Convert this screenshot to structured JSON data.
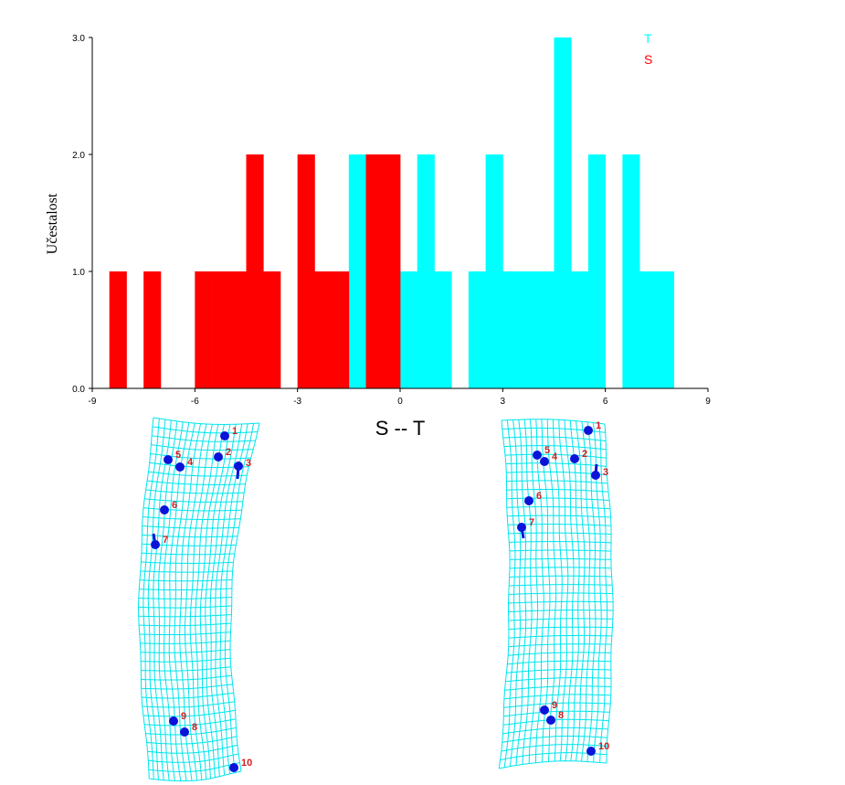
{
  "chart_data": {
    "type": "bar",
    "title": "",
    "xlabel": "S -- T",
    "ylabel": "Učestalost",
    "xlim": [
      -9,
      9
    ],
    "ylim": [
      0,
      3
    ],
    "x_ticks": [
      "-9",
      "-6",
      "-3",
      "0",
      "3",
      "6",
      "9"
    ],
    "y_ticks": [
      "0.0",
      "1.0",
      "2.0",
      "3.0"
    ],
    "bin_width": 0.5,
    "grid": false,
    "legend_position": "top-right",
    "series": [
      {
        "name": "T",
        "color": "#00ffff",
        "bins": [
          {
            "start": -1.5,
            "count": 2
          },
          {
            "start": 0.0,
            "count": 1
          },
          {
            "start": 0.5,
            "count": 2
          },
          {
            "start": 1.0,
            "count": 1
          },
          {
            "start": 2.0,
            "count": 1
          },
          {
            "start": 2.5,
            "count": 2
          },
          {
            "start": 3.0,
            "count": 1
          },
          {
            "start": 3.5,
            "count": 1
          },
          {
            "start": 4.0,
            "count": 1
          },
          {
            "start": 4.5,
            "count": 3
          },
          {
            "start": 5.0,
            "count": 1
          },
          {
            "start": 5.5,
            "count": 2
          },
          {
            "start": 6.5,
            "count": 2
          },
          {
            "start": 7.0,
            "count": 1
          },
          {
            "start": 7.5,
            "count": 1
          }
        ]
      },
      {
        "name": "S",
        "color": "#ff0000",
        "bins": [
          {
            "start": -8.5,
            "count": 1
          },
          {
            "start": -7.5,
            "count": 1
          },
          {
            "start": -6.0,
            "count": 1
          },
          {
            "start": -5.5,
            "count": 1
          },
          {
            "start": -5.0,
            "count": 1
          },
          {
            "start": -4.5,
            "count": 2
          },
          {
            "start": -4.0,
            "count": 1
          },
          {
            "start": -3.0,
            "count": 2
          },
          {
            "start": -2.5,
            "count": 1
          },
          {
            "start": -2.0,
            "count": 1
          },
          {
            "start": -1.0,
            "count": 2
          },
          {
            "start": -0.5,
            "count": 2
          }
        ]
      }
    ]
  },
  "deformation_grids": {
    "grid_color": "#00e5ee",
    "point_color": "#0a14d8",
    "label_color": "#d42020",
    "landmark_labels": [
      "1",
      "2",
      "3",
      "4",
      "5",
      "6",
      "7",
      "8",
      "9",
      "10"
    ]
  }
}
